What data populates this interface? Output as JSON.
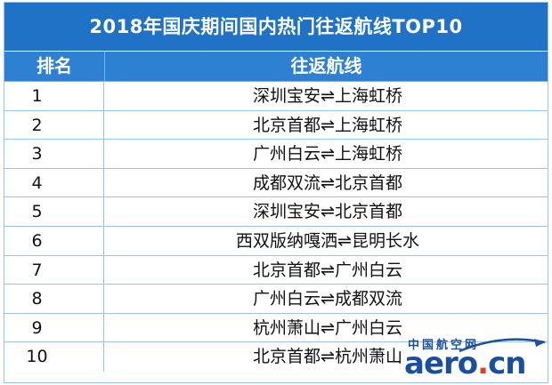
{
  "title": "2018年国庆期间国内热门往返航线TOP10",
  "columns": {
    "rank": "排名",
    "route": "往返航线"
  },
  "rows": [
    {
      "rank": "1",
      "route": "深圳宝安⇌上海虹桥"
    },
    {
      "rank": "2",
      "route": "北京首都⇌上海虹桥"
    },
    {
      "rank": "3",
      "route": "广州白云⇌上海虹桥"
    },
    {
      "rank": "4",
      "route": "成都双流⇌北京首都"
    },
    {
      "rank": "5",
      "route": "深圳宝安⇌北京首都"
    },
    {
      "rank": "6",
      "route": "西双版纳嘎洒⇌昆明长水"
    },
    {
      "rank": "7",
      "route": "北京首都⇌广州白云"
    },
    {
      "rank": "8",
      "route": "广州白云⇌成都双流"
    },
    {
      "rank": "9",
      "route": "杭州萧山⇌广州白云"
    },
    {
      "rank": "10",
      "route": "北京首都⇌杭州萧山"
    }
  ],
  "watermark": {
    "cn": "中国航空网",
    "en_main": "aero",
    "en_dot": ".",
    "en_tld": "cn"
  },
  "colors": {
    "title_bg": "#1f72c6",
    "header_bg": "#2e80d3",
    "border": "#9ec3ea",
    "logo": "#1a4fa0"
  }
}
